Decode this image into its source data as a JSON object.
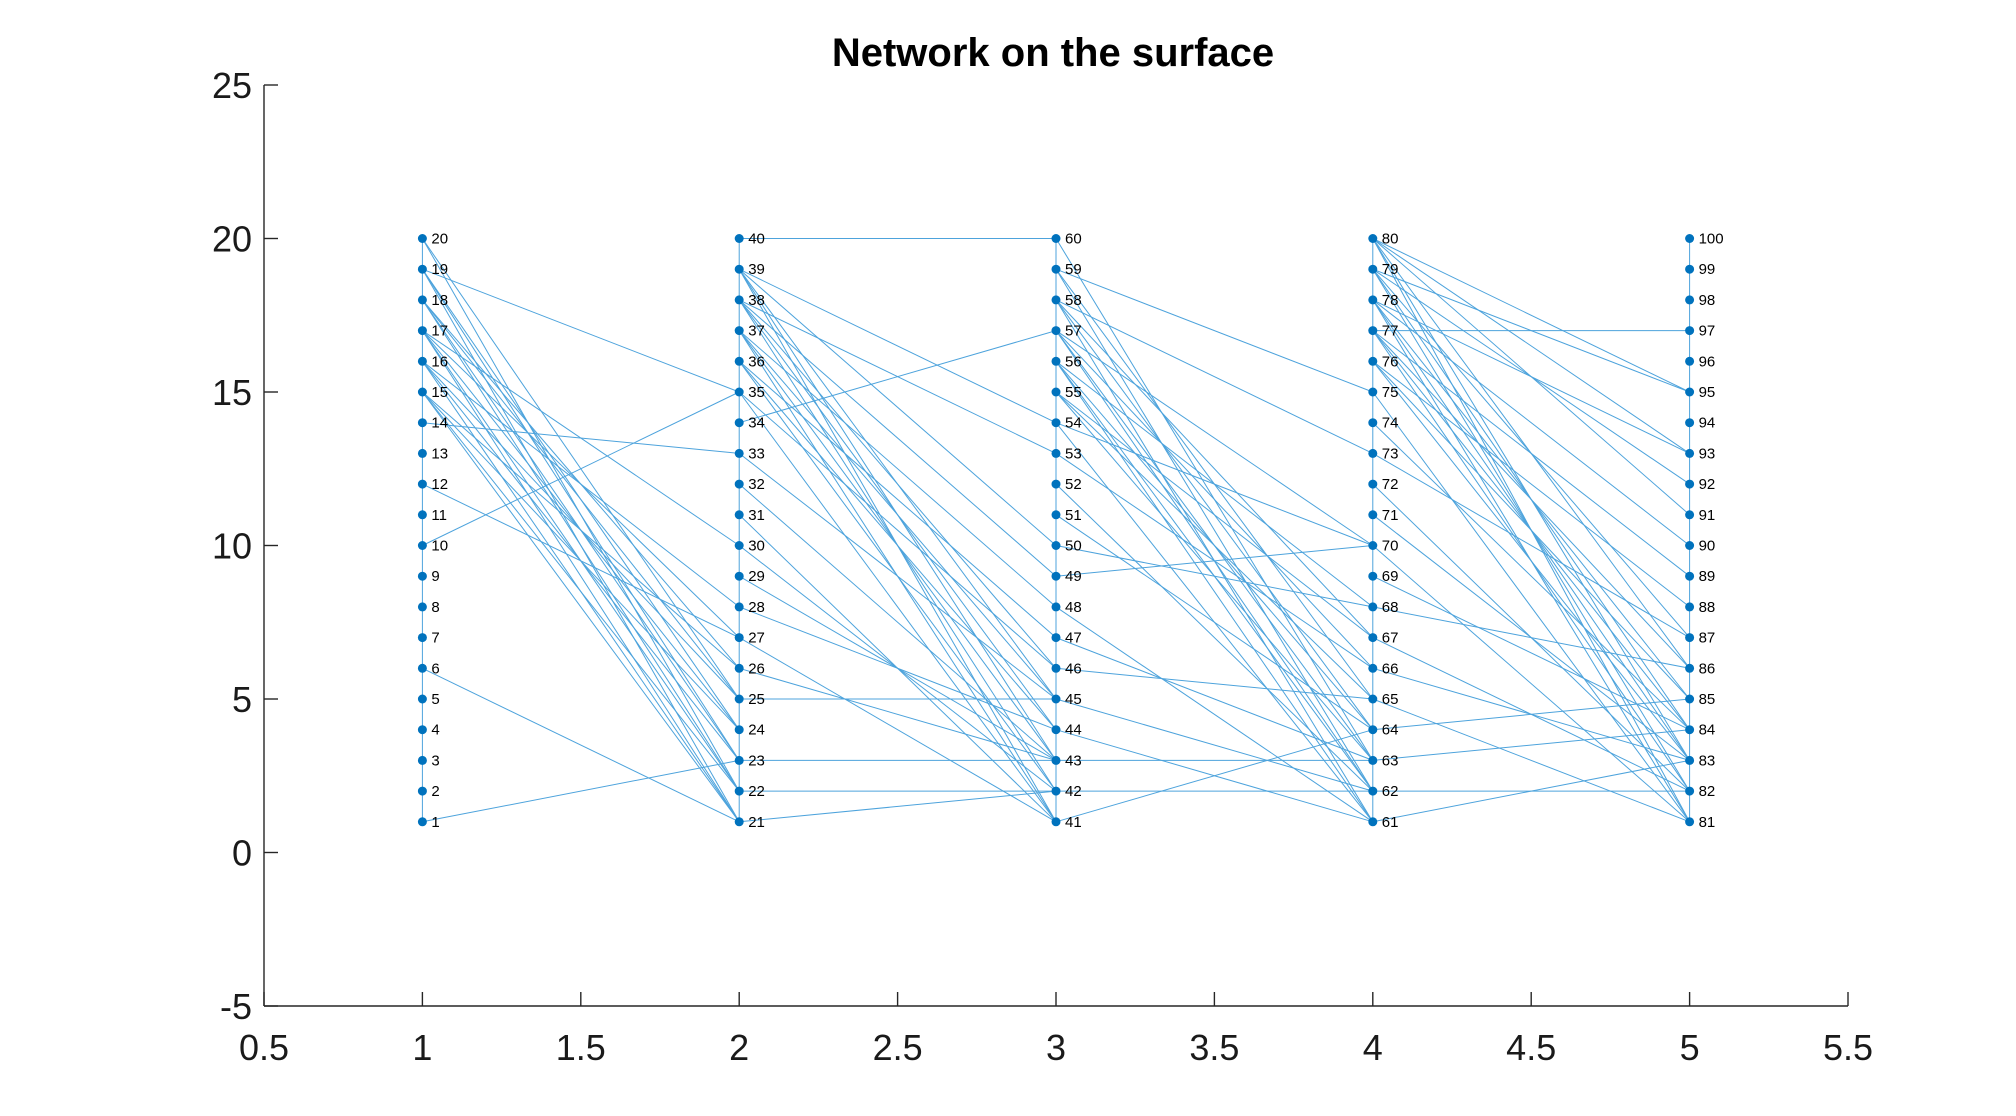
{
  "chart_data": {
    "type": "graph",
    "title": "Network on the surface",
    "xlim": [
      0.5,
      5.5
    ],
    "ylim": [
      -5,
      25
    ],
    "xticks": [
      0.5,
      1,
      1.5,
      2,
      2.5,
      3,
      3.5,
      4,
      4.5,
      5,
      5.5
    ],
    "xtick_labels": [
      "0.5",
      "1",
      "1.5",
      "2",
      "2.5",
      "3",
      "3.5",
      "4",
      "4.5",
      "5",
      "5.5"
    ],
    "yticks": [
      -5,
      0,
      5,
      10,
      15,
      20,
      25
    ],
    "ytick_labels": [
      "-5",
      "0",
      "5",
      "10",
      "15",
      "20",
      "25"
    ],
    "node_color": "#0072bd",
    "edge_color": "#4da3dc",
    "nodes": [
      {
        "id": "1",
        "x": 1,
        "y": 1
      },
      {
        "id": "2",
        "x": 1,
        "y": 2
      },
      {
        "id": "3",
        "x": 1,
        "y": 3
      },
      {
        "id": "4",
        "x": 1,
        "y": 4
      },
      {
        "id": "5",
        "x": 1,
        "y": 5
      },
      {
        "id": "6",
        "x": 1,
        "y": 6
      },
      {
        "id": "7",
        "x": 1,
        "y": 7
      },
      {
        "id": "8",
        "x": 1,
        "y": 8
      },
      {
        "id": "9",
        "x": 1,
        "y": 9
      },
      {
        "id": "10",
        "x": 1,
        "y": 10
      },
      {
        "id": "11",
        "x": 1,
        "y": 11
      },
      {
        "id": "12",
        "x": 1,
        "y": 12
      },
      {
        "id": "13",
        "x": 1,
        "y": 13
      },
      {
        "id": "14",
        "x": 1,
        "y": 14
      },
      {
        "id": "15",
        "x": 1,
        "y": 15
      },
      {
        "id": "16",
        "x": 1,
        "y": 16
      },
      {
        "id": "17",
        "x": 1,
        "y": 17
      },
      {
        "id": "18",
        "x": 1,
        "y": 18
      },
      {
        "id": "19",
        "x": 1,
        "y": 19
      },
      {
        "id": "20",
        "x": 1,
        "y": 20
      },
      {
        "id": "21",
        "x": 2,
        "y": 1
      },
      {
        "id": "22",
        "x": 2,
        "y": 2
      },
      {
        "id": "23",
        "x": 2,
        "y": 3
      },
      {
        "id": "24",
        "x": 2,
        "y": 4
      },
      {
        "id": "25",
        "x": 2,
        "y": 5
      },
      {
        "id": "26",
        "x": 2,
        "y": 6
      },
      {
        "id": "27",
        "x": 2,
        "y": 7
      },
      {
        "id": "28",
        "x": 2,
        "y": 8
      },
      {
        "id": "29",
        "x": 2,
        "y": 9
      },
      {
        "id": "30",
        "x": 2,
        "y": 10
      },
      {
        "id": "31",
        "x": 2,
        "y": 11
      },
      {
        "id": "32",
        "x": 2,
        "y": 12
      },
      {
        "id": "33",
        "x": 2,
        "y": 13
      },
      {
        "id": "34",
        "x": 2,
        "y": 14
      },
      {
        "id": "35",
        "x": 2,
        "y": 15
      },
      {
        "id": "36",
        "x": 2,
        "y": 16
      },
      {
        "id": "37",
        "x": 2,
        "y": 17
      },
      {
        "id": "38",
        "x": 2,
        "y": 18
      },
      {
        "id": "39",
        "x": 2,
        "y": 19
      },
      {
        "id": "40",
        "x": 2,
        "y": 20
      },
      {
        "id": "41",
        "x": 3,
        "y": 1
      },
      {
        "id": "42",
        "x": 3,
        "y": 2
      },
      {
        "id": "43",
        "x": 3,
        "y": 3
      },
      {
        "id": "44",
        "x": 3,
        "y": 4
      },
      {
        "id": "45",
        "x": 3,
        "y": 5
      },
      {
        "id": "46",
        "x": 3,
        "y": 6
      },
      {
        "id": "47",
        "x": 3,
        "y": 7
      },
      {
        "id": "48",
        "x": 3,
        "y": 8
      },
      {
        "id": "49",
        "x": 3,
        "y": 9
      },
      {
        "id": "50",
        "x": 3,
        "y": 10
      },
      {
        "id": "51",
        "x": 3,
        "y": 11
      },
      {
        "id": "52",
        "x": 3,
        "y": 12
      },
      {
        "id": "53",
        "x": 3,
        "y": 13
      },
      {
        "id": "54",
        "x": 3,
        "y": 14
      },
      {
        "id": "55",
        "x": 3,
        "y": 15
      },
      {
        "id": "56",
        "x": 3,
        "y": 16
      },
      {
        "id": "57",
        "x": 3,
        "y": 17
      },
      {
        "id": "58",
        "x": 3,
        "y": 18
      },
      {
        "id": "59",
        "x": 3,
        "y": 19
      },
      {
        "id": "60",
        "x": 3,
        "y": 20
      },
      {
        "id": "61",
        "x": 4,
        "y": 1
      },
      {
        "id": "62",
        "x": 4,
        "y": 2
      },
      {
        "id": "63",
        "x": 4,
        "y": 3
      },
      {
        "id": "64",
        "x": 4,
        "y": 4
      },
      {
        "id": "65",
        "x": 4,
        "y": 5
      },
      {
        "id": "66",
        "x": 4,
        "y": 6
      },
      {
        "id": "67",
        "x": 4,
        "y": 7
      },
      {
        "id": "68",
        "x": 4,
        "y": 8
      },
      {
        "id": "69",
        "x": 4,
        "y": 9
      },
      {
        "id": "70",
        "x": 4,
        "y": 10
      },
      {
        "id": "71",
        "x": 4,
        "y": 11
      },
      {
        "id": "72",
        "x": 4,
        "y": 12
      },
      {
        "id": "73",
        "x": 4,
        "y": 13
      },
      {
        "id": "74",
        "x": 4,
        "y": 14
      },
      {
        "id": "75",
        "x": 4,
        "y": 15
      },
      {
        "id": "76",
        "x": 4,
        "y": 16
      },
      {
        "id": "77",
        "x": 4,
        "y": 17
      },
      {
        "id": "78",
        "x": 4,
        "y": 18
      },
      {
        "id": "79",
        "x": 4,
        "y": 19
      },
      {
        "id": "80",
        "x": 4,
        "y": 20
      },
      {
        "id": "81",
        "x": 5,
        "y": 1
      },
      {
        "id": "82",
        "x": 5,
        "y": 2
      },
      {
        "id": "83",
        "x": 5,
        "y": 3
      },
      {
        "id": "84",
        "x": 5,
        "y": 4
      },
      {
        "id": "85",
        "x": 5,
        "y": 5
      },
      {
        "id": "86",
        "x": 5,
        "y": 6
      },
      {
        "id": "87",
        "x": 5,
        "y": 7
      },
      {
        "id": "88",
        "x": 5,
        "y": 8
      },
      {
        "id": "89",
        "x": 5,
        "y": 9
      },
      {
        "id": "90",
        "x": 5,
        "y": 10
      },
      {
        "id": "91",
        "x": 5,
        "y": 11
      },
      {
        "id": "92",
        "x": 5,
        "y": 12
      },
      {
        "id": "93",
        "x": 5,
        "y": 13
      },
      {
        "id": "94",
        "x": 5,
        "y": 14
      },
      {
        "id": "95",
        "x": 5,
        "y": 15
      },
      {
        "id": "96",
        "x": 5,
        "y": 16
      },
      {
        "id": "97",
        "x": 5,
        "y": 17
      },
      {
        "id": "98",
        "x": 5,
        "y": 18
      },
      {
        "id": "99",
        "x": 5,
        "y": 19
      },
      {
        "id": "100",
        "x": 5,
        "y": 20
      }
    ],
    "edges": [
      [
        "1",
        "2"
      ],
      [
        "2",
        "3"
      ],
      [
        "3",
        "4"
      ],
      [
        "4",
        "5"
      ],
      [
        "5",
        "6"
      ],
      [
        "6",
        "7"
      ],
      [
        "7",
        "8"
      ],
      [
        "8",
        "9"
      ],
      [
        "9",
        "10"
      ],
      [
        "10",
        "11"
      ],
      [
        "11",
        "12"
      ],
      [
        "12",
        "13"
      ],
      [
        "13",
        "14"
      ],
      [
        "14",
        "15"
      ],
      [
        "15",
        "16"
      ],
      [
        "16",
        "17"
      ],
      [
        "17",
        "18"
      ],
      [
        "18",
        "19"
      ],
      [
        "19",
        "20"
      ],
      [
        "21",
        "22"
      ],
      [
        "22",
        "23"
      ],
      [
        "23",
        "24"
      ],
      [
        "24",
        "25"
      ],
      [
        "25",
        "26"
      ],
      [
        "26",
        "27"
      ],
      [
        "27",
        "28"
      ],
      [
        "28",
        "29"
      ],
      [
        "29",
        "30"
      ],
      [
        "30",
        "31"
      ],
      [
        "31",
        "32"
      ],
      [
        "32",
        "33"
      ],
      [
        "33",
        "34"
      ],
      [
        "34",
        "35"
      ],
      [
        "35",
        "36"
      ],
      [
        "36",
        "37"
      ],
      [
        "37",
        "38"
      ],
      [
        "38",
        "39"
      ],
      [
        "39",
        "40"
      ],
      [
        "41",
        "42"
      ],
      [
        "42",
        "43"
      ],
      [
        "43",
        "44"
      ],
      [
        "44",
        "45"
      ],
      [
        "45",
        "46"
      ],
      [
        "46",
        "47"
      ],
      [
        "47",
        "48"
      ],
      [
        "48",
        "49"
      ],
      [
        "49",
        "50"
      ],
      [
        "50",
        "51"
      ],
      [
        "51",
        "52"
      ],
      [
        "52",
        "53"
      ],
      [
        "53",
        "54"
      ],
      [
        "54",
        "55"
      ],
      [
        "55",
        "56"
      ],
      [
        "56",
        "57"
      ],
      [
        "57",
        "58"
      ],
      [
        "58",
        "59"
      ],
      [
        "59",
        "60"
      ],
      [
        "61",
        "62"
      ],
      [
        "62",
        "63"
      ],
      [
        "63",
        "64"
      ],
      [
        "64",
        "65"
      ],
      [
        "65",
        "66"
      ],
      [
        "66",
        "67"
      ],
      [
        "67",
        "68"
      ],
      [
        "68",
        "69"
      ],
      [
        "69",
        "70"
      ],
      [
        "70",
        "71"
      ],
      [
        "71",
        "72"
      ],
      [
        "72",
        "73"
      ],
      [
        "73",
        "74"
      ],
      [
        "74",
        "75"
      ],
      [
        "75",
        "76"
      ],
      [
        "76",
        "77"
      ],
      [
        "77",
        "78"
      ],
      [
        "78",
        "79"
      ],
      [
        "79",
        "80"
      ],
      [
        "81",
        "82"
      ],
      [
        "82",
        "83"
      ],
      [
        "83",
        "84"
      ],
      [
        "84",
        "85"
      ],
      [
        "85",
        "86"
      ],
      [
        "86",
        "87"
      ],
      [
        "87",
        "88"
      ],
      [
        "88",
        "89"
      ],
      [
        "89",
        "90"
      ],
      [
        "90",
        "91"
      ],
      [
        "91",
        "92"
      ],
      [
        "92",
        "93"
      ],
      [
        "93",
        "94"
      ],
      [
        "94",
        "95"
      ],
      [
        "95",
        "96"
      ],
      [
        "96",
        "97"
      ],
      [
        "97",
        "98"
      ],
      [
        "98",
        "99"
      ],
      [
        "99",
        "100"
      ],
      [
        "1",
        "23"
      ],
      [
        "6",
        "21"
      ],
      [
        "10",
        "35"
      ],
      [
        "12",
        "27"
      ],
      [
        "14",
        "33"
      ],
      [
        "15",
        "21"
      ],
      [
        "15",
        "22"
      ],
      [
        "15",
        "24"
      ],
      [
        "15",
        "26"
      ],
      [
        "16",
        "21"
      ],
      [
        "16",
        "23"
      ],
      [
        "16",
        "25"
      ],
      [
        "16",
        "28"
      ],
      [
        "17",
        "21"
      ],
      [
        "17",
        "22"
      ],
      [
        "17",
        "24"
      ],
      [
        "17",
        "27"
      ],
      [
        "17",
        "30"
      ],
      [
        "18",
        "22"
      ],
      [
        "18",
        "23"
      ],
      [
        "18",
        "25"
      ],
      [
        "18",
        "26"
      ],
      [
        "19",
        "21"
      ],
      [
        "19",
        "23"
      ],
      [
        "19",
        "24"
      ],
      [
        "19",
        "35"
      ],
      [
        "20",
        "22"
      ],
      [
        "20",
        "25"
      ],
      [
        "21",
        "42"
      ],
      [
        "22",
        "42"
      ],
      [
        "23",
        "43"
      ],
      [
        "25",
        "45"
      ],
      [
        "26",
        "43"
      ],
      [
        "27",
        "41"
      ],
      [
        "28",
        "44"
      ],
      [
        "29",
        "43"
      ],
      [
        "30",
        "42"
      ],
      [
        "31",
        "41"
      ],
      [
        "32",
        "43"
      ],
      [
        "33",
        "45"
      ],
      [
        "34",
        "57"
      ],
      [
        "35",
        "41"
      ],
      [
        "35",
        "46"
      ],
      [
        "36",
        "42"
      ],
      [
        "36",
        "44"
      ],
      [
        "36",
        "47"
      ],
      [
        "37",
        "41"
      ],
      [
        "37",
        "43"
      ],
      [
        "37",
        "45"
      ],
      [
        "37",
        "48"
      ],
      [
        "38",
        "42"
      ],
      [
        "38",
        "44"
      ],
      [
        "38",
        "46"
      ],
      [
        "38",
        "49"
      ],
      [
        "38",
        "53"
      ],
      [
        "39",
        "41"
      ],
      [
        "39",
        "43"
      ],
      [
        "39",
        "45"
      ],
      [
        "39",
        "50"
      ],
      [
        "39",
        "54"
      ],
      [
        "40",
        "60"
      ],
      [
        "41",
        "64"
      ],
      [
        "42",
        "62"
      ],
      [
        "43",
        "63"
      ],
      [
        "44",
        "61"
      ],
      [
        "45",
        "62"
      ],
      [
        "46",
        "65"
      ],
      [
        "47",
        "63"
      ],
      [
        "48",
        "61"
      ],
      [
        "49",
        "70"
      ],
      [
        "50",
        "68"
      ],
      [
        "51",
        "64"
      ],
      [
        "52",
        "62"
      ],
      [
        "53",
        "66"
      ],
      [
        "54",
        "61"
      ],
      [
        "54",
        "70"
      ],
      [
        "55",
        "63"
      ],
      [
        "55",
        "65"
      ],
      [
        "55",
        "67"
      ],
      [
        "56",
        "61"
      ],
      [
        "56",
        "62"
      ],
      [
        "56",
        "64"
      ],
      [
        "56",
        "68"
      ],
      [
        "57",
        "62"
      ],
      [
        "57",
        "63"
      ],
      [
        "57",
        "66"
      ],
      [
        "57",
        "70"
      ],
      [
        "58",
        "61"
      ],
      [
        "58",
        "64"
      ],
      [
        "58",
        "67"
      ],
      [
        "58",
        "73"
      ],
      [
        "59",
        "62"
      ],
      [
        "59",
        "65"
      ],
      [
        "59",
        "75"
      ],
      [
        "60",
        "63"
      ],
      [
        "61",
        "83"
      ],
      [
        "62",
        "82"
      ],
      [
        "63",
        "84"
      ],
      [
        "64",
        "85"
      ],
      [
        "65",
        "81"
      ],
      [
        "66",
        "83"
      ],
      [
        "67",
        "82"
      ],
      [
        "68",
        "86"
      ],
      [
        "69",
        "84"
      ],
      [
        "70",
        "81"
      ],
      [
        "71",
        "83"
      ],
      [
        "72",
        "82"
      ],
      [
        "73",
        "87"
      ],
      [
        "74",
        "84"
      ],
      [
        "75",
        "81"
      ],
      [
        "76",
        "83"
      ],
      [
        "76",
        "85"
      ],
      [
        "76",
        "88"
      ],
      [
        "77",
        "97"
      ],
      [
        "77",
        "82"
      ],
      [
        "77",
        "84"
      ],
      [
        "77",
        "86"
      ],
      [
        "77",
        "89"
      ],
      [
        "78",
        "81"
      ],
      [
        "78",
        "83"
      ],
      [
        "78",
        "85"
      ],
      [
        "78",
        "90"
      ],
      [
        "78",
        "93"
      ],
      [
        "79",
        "82"
      ],
      [
        "79",
        "84"
      ],
      [
        "79",
        "87"
      ],
      [
        "79",
        "92"
      ],
      [
        "79",
        "95"
      ],
      [
        "80",
        "81"
      ],
      [
        "80",
        "83"
      ],
      [
        "80",
        "86"
      ],
      [
        "80",
        "91"
      ],
      [
        "80",
        "93"
      ],
      [
        "80",
        "95"
      ]
    ]
  }
}
